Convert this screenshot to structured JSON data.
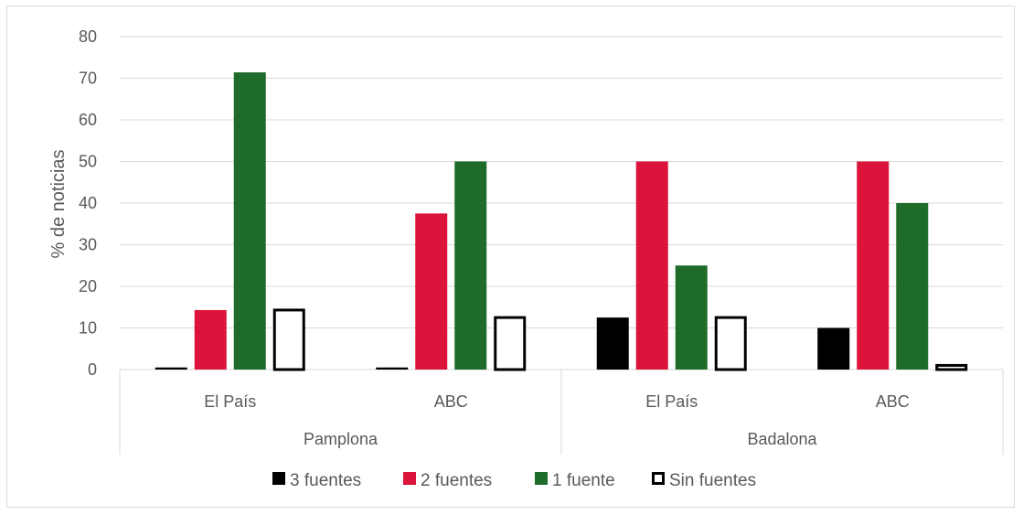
{
  "chart_data": {
    "type": "bar",
    "ylabel": "% de noticias",
    "ylim": [
      0,
      80
    ],
    "yticks": [
      0,
      10,
      20,
      30,
      40,
      50,
      60,
      70,
      80
    ],
    "grid": true,
    "legend_position": "bottom",
    "categories": [
      "El País",
      "ABC",
      "El País",
      "ABC"
    ],
    "groups": [
      {
        "label": "Pamplona",
        "categories": [
          "El País",
          "ABC"
        ]
      },
      {
        "label": "Badalona",
        "categories": [
          "El País",
          "ABC"
        ]
      }
    ],
    "series": [
      {
        "name": "3 fuentes",
        "color": "#000000",
        "style": "solid",
        "values": [
          0.5,
          0.5,
          12.5,
          10
        ]
      },
      {
        "name": "2 fuentes",
        "color": "#dc143c",
        "style": "solid",
        "values": [
          14.3,
          37.5,
          50,
          50
        ]
      },
      {
        "name": "1 fuente",
        "color": "#1e6b2a",
        "style": "solid",
        "values": [
          71.4,
          50,
          25,
          40
        ]
      },
      {
        "name": "Sin fuentes",
        "color": "#000000",
        "style": "outline",
        "values": [
          14.3,
          12.5,
          12.5,
          1
        ]
      }
    ]
  }
}
